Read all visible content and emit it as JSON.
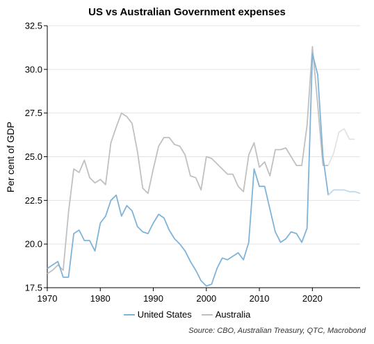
{
  "chart_data": {
    "type": "line",
    "title": "US vs Australian Government expenses",
    "ylabel": "Per cent of GDP",
    "xlabel": "",
    "xlim": [
      1970,
      2029
    ],
    "ylim": [
      17.5,
      32.5
    ],
    "x_ticks": [
      "1970",
      "1980",
      "1990",
      "2000",
      "2010",
      "2020"
    ],
    "y_ticks": [
      "17.5",
      "20.0",
      "22.5",
      "25.0",
      "27.5",
      "30.0",
      "32.5"
    ],
    "grid": "horizontal",
    "legend_position": "bottom",
    "series": [
      {
        "name": "United States",
        "color": "#7fb3d8",
        "x": [
          1970,
          1971,
          1972,
          1973,
          1974,
          1975,
          1976,
          1977,
          1978,
          1979,
          1980,
          1981,
          1982,
          1983,
          1984,
          1985,
          1986,
          1987,
          1988,
          1989,
          1990,
          1991,
          1992,
          1993,
          1994,
          1995,
          1996,
          1997,
          1998,
          1999,
          2000,
          2001,
          2002,
          2003,
          2004,
          2005,
          2006,
          2007,
          2008,
          2009,
          2010,
          2011,
          2012,
          2013,
          2014,
          2015,
          2016,
          2017,
          2018,
          2019,
          2020,
          2021,
          2022,
          2023
        ],
        "y": [
          18.6,
          18.8,
          19.0,
          18.1,
          18.1,
          20.6,
          20.8,
          20.2,
          20.2,
          19.6,
          21.2,
          21.6,
          22.5,
          22.8,
          21.6,
          22.2,
          21.9,
          21.0,
          20.7,
          20.6,
          21.2,
          21.7,
          21.5,
          20.8,
          20.3,
          20.0,
          19.6,
          19.0,
          18.5,
          17.9,
          17.6,
          17.7,
          18.6,
          19.2,
          19.1,
          19.3,
          19.5,
          19.1,
          20.1,
          24.3,
          23.3,
          23.3,
          22.0,
          20.7,
          20.1,
          20.3,
          20.7,
          20.6,
          20.1,
          20.9,
          30.9,
          29.7,
          25.0,
          22.8
        ]
      },
      {
        "name": "United States (forecast)",
        "color": "#bcd9ee",
        "x": [
          2023,
          2024,
          2025,
          2026,
          2027,
          2028,
          2029
        ],
        "y": [
          22.8,
          23.1,
          23.1,
          23.1,
          23.0,
          23.0,
          22.9
        ]
      },
      {
        "name": "Australia",
        "color": "#c0c0c0",
        "x": [
          1970,
          1971,
          1972,
          1973,
          1974,
          1975,
          1976,
          1977,
          1978,
          1979,
          1980,
          1981,
          1982,
          1983,
          1984,
          1985,
          1986,
          1987,
          1988,
          1989,
          1990,
          1991,
          1992,
          1993,
          1994,
          1995,
          1996,
          1997,
          1998,
          1999,
          2000,
          2001,
          2002,
          2003,
          2004,
          2005,
          2006,
          2007,
          2008,
          2009,
          2010,
          2011,
          2012,
          2013,
          2014,
          2015,
          2016,
          2017,
          2018,
          2019,
          2020,
          2021,
          2022,
          2023
        ],
        "y": [
          18.3,
          18.5,
          18.8,
          18.5,
          21.8,
          24.3,
          24.1,
          24.8,
          23.8,
          23.5,
          23.7,
          23.4,
          25.8,
          26.7,
          27.5,
          27.3,
          26.9,
          25.3,
          23.2,
          22.9,
          24.3,
          25.6,
          26.1,
          26.1,
          25.7,
          25.6,
          25.1,
          23.9,
          23.8,
          23.1,
          25.0,
          24.9,
          24.6,
          24.3,
          24.0,
          24.0,
          23.3,
          23.0,
          25.1,
          25.8,
          24.4,
          24.7,
          23.9,
          25.4,
          25.4,
          25.5,
          25.0,
          24.5,
          24.5,
          26.8,
          31.3,
          28.0,
          24.5,
          24.5
        ]
      },
      {
        "name": "Australia (forecast)",
        "color": "#e3e3e3",
        "x": [
          2023,
          2024,
          2025,
          2026,
          2027,
          2028
        ],
        "y": [
          24.5,
          25.2,
          26.4,
          26.6,
          26.0,
          26.0
        ]
      }
    ],
    "legend": [
      {
        "label": "United States",
        "color": "#7fb3d8"
      },
      {
        "label": "Australia",
        "color": "#c0c0c0"
      }
    ],
    "source": "Source: CBO, Australian Treasury, QTC, Macrobond"
  }
}
